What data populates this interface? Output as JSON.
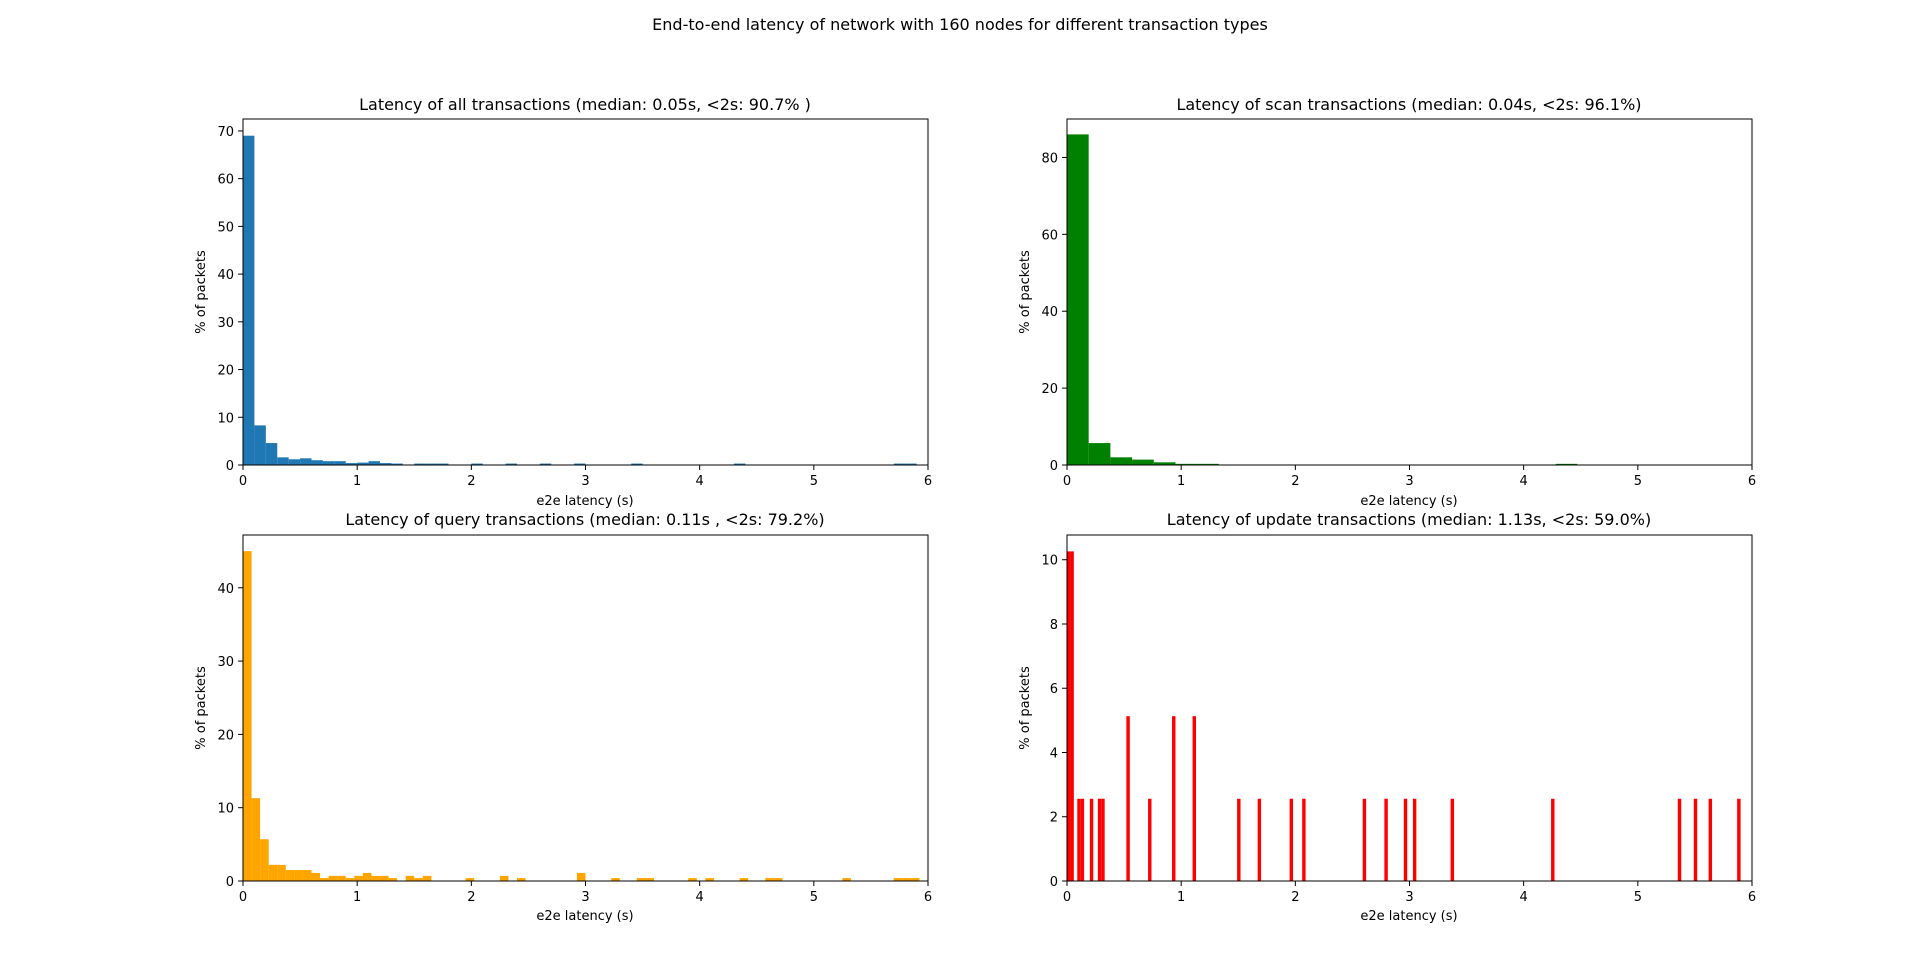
{
  "figure": {
    "title": "End-to-end latency of network with 160 nodes for different transaction types"
  },
  "chart_data": [
    {
      "type": "bar",
      "title": "Latency of all transactions (median: 0.05s, <2s: 90.7% )",
      "xlabel": "e2e latency (s)",
      "ylabel": "% of packets",
      "xlim": [
        0,
        6
      ],
      "ylim": [
        0,
        72.5
      ],
      "xticks": [
        0,
        1,
        2,
        3,
        4,
        5,
        6
      ],
      "yticks": [
        0,
        10,
        20,
        30,
        40,
        50,
        60,
        70
      ],
      "color": "#1f77b4",
      "grid": false,
      "bin_width": 0.1,
      "bins": [
        [
          0.0,
          69.0
        ],
        [
          0.1,
          8.3
        ],
        [
          0.2,
          4.6
        ],
        [
          0.3,
          1.6
        ],
        [
          0.4,
          1.2
        ],
        [
          0.5,
          1.4
        ],
        [
          0.6,
          1.0
        ],
        [
          0.7,
          0.8
        ],
        [
          0.8,
          0.8
        ],
        [
          0.9,
          0.4
        ],
        [
          1.0,
          0.5
        ],
        [
          1.1,
          0.8
        ],
        [
          1.2,
          0.4
        ],
        [
          1.3,
          0.3
        ],
        [
          1.5,
          0.3
        ],
        [
          1.6,
          0.3
        ],
        [
          1.7,
          0.3
        ],
        [
          2.0,
          0.3
        ],
        [
          2.3,
          0.3
        ],
        [
          2.6,
          0.3
        ],
        [
          2.9,
          0.3
        ],
        [
          3.4,
          0.3
        ],
        [
          4.3,
          0.3
        ],
        [
          5.7,
          0.3
        ],
        [
          5.8,
          0.3
        ]
      ]
    },
    {
      "type": "bar",
      "title": "Latency of scan transactions (median: 0.04s, <2s: 96.1%)",
      "xlabel": "e2e latency (s)",
      "ylabel": "% of packets",
      "xlim": [
        0,
        6
      ],
      "ylim": [
        0,
        90
      ],
      "xticks": [
        0,
        1,
        2,
        3,
        4,
        5,
        6
      ],
      "yticks": [
        0,
        20,
        40,
        60,
        80
      ],
      "color": "#008000",
      "grid": false,
      "bin_width": 0.19,
      "bins": [
        [
          0.0,
          86.0
        ],
        [
          0.19,
          5.7
        ],
        [
          0.38,
          2.0
        ],
        [
          0.57,
          1.4
        ],
        [
          0.76,
          0.7
        ],
        [
          0.95,
          0.3
        ],
        [
          1.14,
          0.3
        ],
        [
          4.28,
          0.3
        ]
      ]
    },
    {
      "type": "bar",
      "title": "Latency of query transactions (median: 0.11s , <2s: 79.2%)",
      "xlabel": "e2e latency (s)",
      "ylabel": "% of packets",
      "xlim": [
        0,
        6
      ],
      "ylim": [
        0,
        47.2
      ],
      "xticks": [
        0,
        1,
        2,
        3,
        4,
        5,
        6
      ],
      "yticks": [
        0,
        10,
        20,
        30,
        40
      ],
      "color": "#ffa500",
      "grid": false,
      "bin_width": 0.075,
      "bins": [
        [
          0.0,
          45.0
        ],
        [
          0.075,
          11.3
        ],
        [
          0.15,
          5.7
        ],
        [
          0.225,
          2.2
        ],
        [
          0.3,
          2.2
        ],
        [
          0.375,
          1.5
        ],
        [
          0.45,
          1.5
        ],
        [
          0.525,
          1.5
        ],
        [
          0.6,
          1.1
        ],
        [
          0.675,
          0.4
        ],
        [
          0.75,
          0.7
        ],
        [
          0.825,
          0.7
        ],
        [
          0.9,
          0.4
        ],
        [
          0.975,
          0.7
        ],
        [
          1.05,
          1.1
        ],
        [
          1.125,
          0.7
        ],
        [
          1.2,
          0.7
        ],
        [
          1.275,
          0.4
        ],
        [
          1.425,
          0.7
        ],
        [
          1.5,
          0.4
        ],
        [
          1.575,
          0.7
        ],
        [
          1.95,
          0.4
        ],
        [
          2.25,
          0.7
        ],
        [
          2.4,
          0.4
        ],
        [
          2.925,
          1.1
        ],
        [
          3.225,
          0.4
        ],
        [
          3.45,
          0.4
        ],
        [
          3.525,
          0.4
        ],
        [
          3.9,
          0.4
        ],
        [
          4.05,
          0.4
        ],
        [
          4.35,
          0.4
        ],
        [
          4.575,
          0.4
        ],
        [
          4.65,
          0.4
        ],
        [
          5.25,
          0.4
        ],
        [
          5.7,
          0.4
        ],
        [
          5.775,
          0.4
        ],
        [
          5.85,
          0.4
        ]
      ]
    },
    {
      "type": "bar",
      "title": "Latency of update transactions (median: 1.13s, <2s: 59.0%)",
      "xlabel": "e2e latency (s)",
      "ylabel": "% of packets",
      "xlim": [
        0,
        6
      ],
      "ylim": [
        0,
        10.77
      ],
      "xticks": [
        0,
        1,
        2,
        3,
        4,
        5,
        6
      ],
      "yticks": [
        0,
        2,
        4,
        6,
        8,
        10
      ],
      "color": "#ff0000",
      "grid": false,
      "bin_width": 0.03,
      "bins": [
        [
          0.0,
          10.26
        ],
        [
          0.03,
          10.26
        ],
        [
          0.09,
          2.56
        ],
        [
          0.12,
          2.56
        ],
        [
          0.2,
          2.56
        ],
        [
          0.27,
          2.56
        ],
        [
          0.3,
          2.56
        ],
        [
          0.52,
          5.13
        ],
        [
          0.71,
          2.56
        ],
        [
          0.92,
          5.13
        ],
        [
          1.1,
          5.13
        ],
        [
          1.49,
          2.56
        ],
        [
          1.67,
          2.56
        ],
        [
          1.95,
          2.56
        ],
        [
          2.06,
          2.56
        ],
        [
          2.59,
          2.56
        ],
        [
          2.78,
          2.56
        ],
        [
          2.95,
          2.56
        ],
        [
          3.03,
          2.56
        ],
        [
          3.36,
          2.56
        ],
        [
          4.24,
          2.56
        ],
        [
          5.35,
          2.56
        ],
        [
          5.49,
          2.56
        ],
        [
          5.62,
          2.56
        ],
        [
          5.87,
          2.56
        ]
      ]
    }
  ]
}
